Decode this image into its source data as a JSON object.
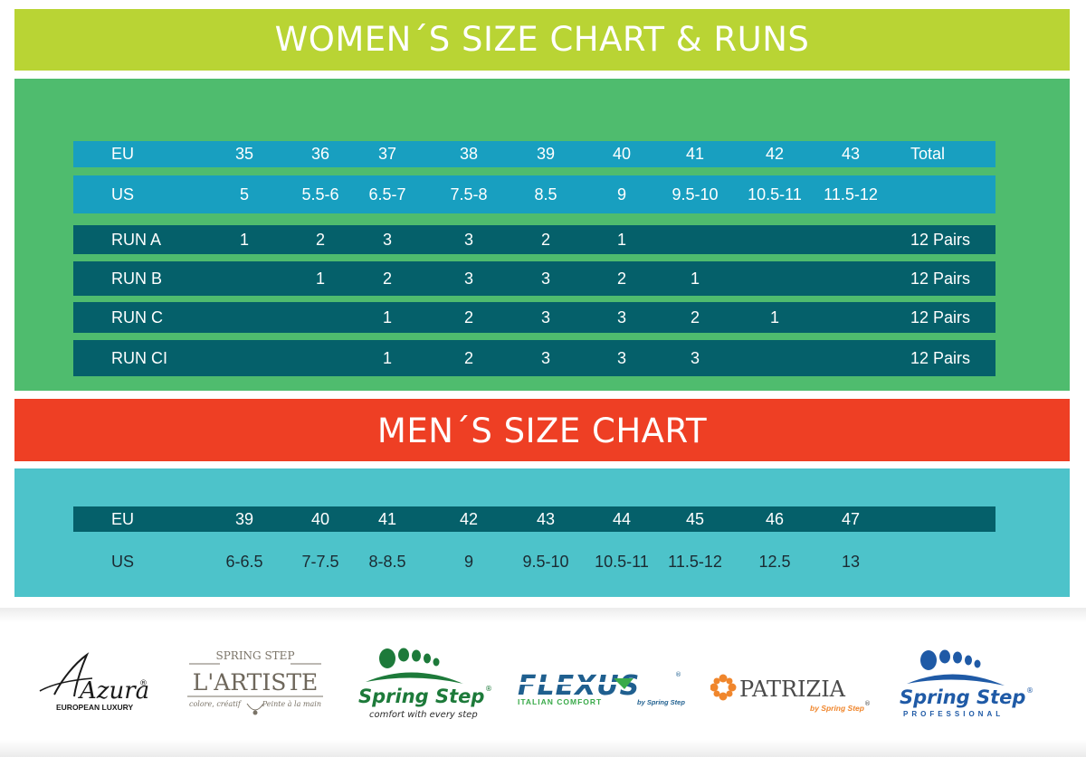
{
  "women": {
    "title": "WOMEN´S SIZE CHART & RUNS",
    "rows": [
      {
        "label": "EU",
        "cells": [
          "35",
          "36",
          "37",
          "38",
          "39",
          "40",
          "41",
          "42",
          "43"
        ],
        "total": "Total"
      },
      {
        "label": "US",
        "cells": [
          "5",
          "5.5-6",
          "6.5-7",
          "7.5-8",
          "8.5",
          "9",
          "9.5-10",
          "10.5-11",
          "11.5-12"
        ],
        "total": ""
      },
      {
        "label": "RUN A",
        "cells": [
          "1",
          "2",
          "3",
          "3",
          "2",
          "1",
          "",
          "",
          ""
        ],
        "total": "12 Pairs"
      },
      {
        "label": "RUN B",
        "cells": [
          "",
          "1",
          "2",
          "3",
          "3",
          "2",
          "1",
          "",
          ""
        ],
        "total": "12 Pairs"
      },
      {
        "label": "RUN C",
        "cells": [
          "",
          "",
          "1",
          "2",
          "3",
          "3",
          "2",
          "1",
          ""
        ],
        "total": "12 Pairs"
      },
      {
        "label": "RUN CI",
        "cells": [
          "",
          "",
          "1",
          "2",
          "3",
          "3",
          "3",
          "",
          ""
        ],
        "total": "12 Pairs"
      }
    ]
  },
  "men": {
    "title": "MEN´S SIZE CHART",
    "rows": [
      {
        "label": "EU",
        "cells": [
          "39",
          "40",
          "41",
          "42",
          "43",
          "44",
          "45",
          "46",
          "47"
        ]
      },
      {
        "label": "US",
        "cells": [
          "6-6.5",
          "7-7.5",
          "8-8.5",
          "9",
          "9.5-10",
          "10.5-11",
          "11.5-12",
          "12.5",
          "13"
        ]
      }
    ]
  },
  "brands": {
    "azura": {
      "name": "Azura",
      "tagline": "EUROPEAN LUXURY",
      "mark": "®"
    },
    "lartiste": {
      "top": "SPRING STEP",
      "name": "L'ARTISTE",
      "left_tag": "colore, créatif",
      "right_tag": "Peinte à la main"
    },
    "springstep": {
      "name": "Spring Step",
      "mark": "®",
      "tagline": "comfort with every step"
    },
    "flexus": {
      "name": "FLEXUS",
      "mark": "®",
      "left_tag": "ITALIAN COMFORT",
      "right_tag": "by Spring Step"
    },
    "patrizia": {
      "name": "PATRIZIA",
      "tagline": "by Spring Step",
      "mark": "®"
    },
    "springstep_pro": {
      "name": "Spring Step",
      "mark": "®",
      "tagline": "PROFESSIONAL"
    }
  },
  "colors": {
    "women_banner": "#b9d434",
    "women_panel": "#4fbc6e",
    "men_banner": "#ee3f24",
    "men_panel": "#4dc3ca",
    "row_light": "#189fc0",
    "row_dark": "#05606a",
    "springstep_green": "#1d7a3a",
    "springstep_blue": "#1f5aa6",
    "patrizia_orange": "#f0862c"
  }
}
